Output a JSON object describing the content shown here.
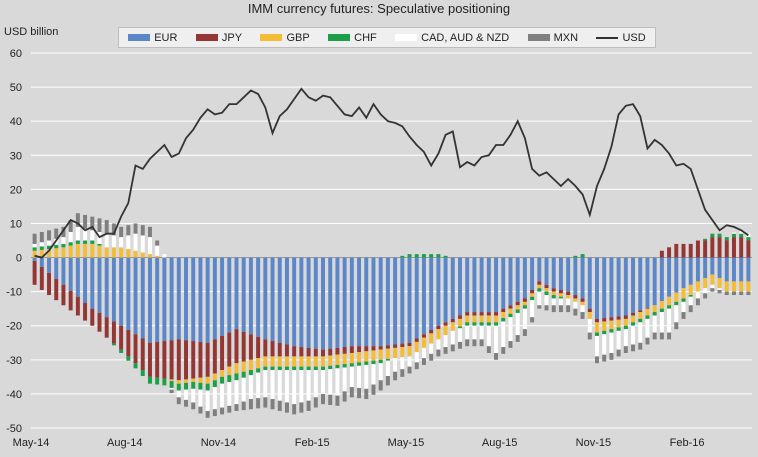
{
  "chart_data": {
    "type": "bar",
    "title": "IMM currency futures: Speculative positioning",
    "ylabel": "USD billion",
    "ylim": [
      -50,
      60
    ],
    "yticks": [
      -50,
      -40,
      -30,
      -20,
      -10,
      0,
      10,
      20,
      30,
      40,
      50,
      60
    ],
    "xtick_labels": [
      "May-14",
      "Aug-14",
      "Nov-14",
      "Feb-15",
      "May-15",
      "Aug-15",
      "Nov-15",
      "Feb-16"
    ],
    "xtick_week_index": [
      0,
      13,
      26,
      39,
      52,
      65,
      78,
      91
    ],
    "weeks": 100,
    "grid": true,
    "series": [
      {
        "name": "EUR",
        "color": "#5b87c9",
        "knots": [
          [
            0,
            -1
          ],
          [
            4,
            -8
          ],
          [
            8,
            -15
          ],
          [
            12,
            -20
          ],
          [
            16,
            -25
          ],
          [
            20,
            -24
          ],
          [
            24,
            -25
          ],
          [
            28,
            -21
          ],
          [
            32,
            -24
          ],
          [
            36,
            -26
          ],
          [
            40,
            -27
          ],
          [
            44,
            -26
          ],
          [
            48,
            -26
          ],
          [
            52,
            -25
          ],
          [
            56,
            -20
          ],
          [
            60,
            -16
          ],
          [
            64,
            -16
          ],
          [
            68,
            -12
          ],
          [
            70,
            -7
          ],
          [
            72,
            -9
          ],
          [
            74,
            -10
          ],
          [
            76,
            -12
          ],
          [
            78,
            -18
          ],
          [
            82,
            -17
          ],
          [
            86,
            -14
          ],
          [
            90,
            -9
          ],
          [
            94,
            -5
          ],
          [
            96,
            -7
          ],
          [
            99,
            -7
          ]
        ]
      },
      {
        "name": "JPY",
        "color": "#943634",
        "knots": [
          [
            0,
            -7
          ],
          [
            4,
            -6
          ],
          [
            8,
            -5
          ],
          [
            12,
            -7
          ],
          [
            16,
            -10
          ],
          [
            20,
            -12
          ],
          [
            24,
            -10
          ],
          [
            28,
            -10
          ],
          [
            32,
            -5
          ],
          [
            36,
            -3
          ],
          [
            40,
            -2
          ],
          [
            44,
            -2
          ],
          [
            48,
            -1
          ],
          [
            52,
            -1
          ],
          [
            56,
            -1
          ],
          [
            60,
            -1
          ],
          [
            64,
            -1
          ],
          [
            68,
            -1
          ],
          [
            72,
            -1
          ],
          [
            76,
            -1
          ],
          [
            78,
            -1
          ],
          [
            82,
            -1
          ],
          [
            86,
            0
          ],
          [
            87,
            2
          ],
          [
            88,
            3
          ],
          [
            89,
            4
          ],
          [
            90,
            4
          ],
          [
            91,
            4
          ],
          [
            92,
            5
          ],
          [
            93,
            5
          ],
          [
            94,
            6
          ],
          [
            95,
            6
          ],
          [
            96,
            5
          ],
          [
            97,
            6
          ],
          [
            98,
            6
          ],
          [
            99,
            5
          ]
        ]
      },
      {
        "name": "GBP",
        "color": "#f5bd36",
        "knots": [
          [
            0,
            2
          ],
          [
            4,
            3
          ],
          [
            6,
            4
          ],
          [
            8,
            4
          ],
          [
            10,
            3
          ],
          [
            12,
            3
          ],
          [
            14,
            2
          ],
          [
            16,
            1
          ],
          [
            18,
            0
          ],
          [
            20,
            -1
          ],
          [
            22,
            -1
          ],
          [
            24,
            -2
          ],
          [
            26,
            -2
          ],
          [
            28,
            -3
          ],
          [
            32,
            -3
          ],
          [
            36,
            -3
          ],
          [
            40,
            -3
          ],
          [
            44,
            -3
          ],
          [
            48,
            -3
          ],
          [
            52,
            -3
          ],
          [
            56,
            -3
          ],
          [
            60,
            -2
          ],
          [
            64,
            -2
          ],
          [
            68,
            -1
          ],
          [
            72,
            -1
          ],
          [
            76,
            -1
          ],
          [
            78,
            -3
          ],
          [
            82,
            -2
          ],
          [
            86,
            -2
          ],
          [
            90,
            -3
          ],
          [
            94,
            -3
          ],
          [
            96,
            -3
          ],
          [
            99,
            -3
          ]
        ]
      },
      {
        "name": "CHF",
        "color": "#1ba047",
        "knots": [
          [
            0,
            1
          ],
          [
            8,
            1
          ],
          [
            12,
            -1
          ],
          [
            16,
            -2
          ],
          [
            20,
            -2
          ],
          [
            24,
            -2
          ],
          [
            28,
            -2
          ],
          [
            32,
            -1
          ],
          [
            36,
            -1
          ],
          [
            40,
            -1
          ],
          [
            44,
            -1
          ],
          [
            48,
            -1
          ],
          [
            52,
            1
          ],
          [
            56,
            1
          ],
          [
            60,
            -1
          ],
          [
            64,
            -1
          ],
          [
            68,
            -1
          ],
          [
            72,
            -1
          ],
          [
            76,
            1
          ],
          [
            78,
            -1
          ],
          [
            82,
            -1
          ],
          [
            86,
            -1
          ],
          [
            90,
            -1
          ],
          [
            94,
            1
          ],
          [
            96,
            1
          ],
          [
            99,
            1
          ]
        ]
      },
      {
        "name": "CAD, AUD & NZD",
        "color": "#ffffff",
        "knots": [
          [
            0,
            1
          ],
          [
            4,
            2
          ],
          [
            6,
            4
          ],
          [
            8,
            3
          ],
          [
            10,
            4
          ],
          [
            12,
            3
          ],
          [
            14,
            5
          ],
          [
            16,
            5
          ],
          [
            18,
            1
          ],
          [
            20,
            -2
          ],
          [
            22,
            -4
          ],
          [
            24,
            -6
          ],
          [
            26,
            -7
          ],
          [
            28,
            -7
          ],
          [
            30,
            -7
          ],
          [
            32,
            -8
          ],
          [
            34,
            -9
          ],
          [
            36,
            -10
          ],
          [
            38,
            -9
          ],
          [
            40,
            -7
          ],
          [
            42,
            -8
          ],
          [
            44,
            -6
          ],
          [
            46,
            -7
          ],
          [
            48,
            -5
          ],
          [
            50,
            -4
          ],
          [
            52,
            -3
          ],
          [
            54,
            -3
          ],
          [
            56,
            -3
          ],
          [
            58,
            -4
          ],
          [
            60,
            -4
          ],
          [
            62,
            -4
          ],
          [
            64,
            -8
          ],
          [
            66,
            -7
          ],
          [
            68,
            -6
          ],
          [
            70,
            -4
          ],
          [
            72,
            -2
          ],
          [
            74,
            -2
          ],
          [
            76,
            -2
          ],
          [
            78,
            -6
          ],
          [
            80,
            -6
          ],
          [
            82,
            -5
          ],
          [
            84,
            -6
          ],
          [
            86,
            -5
          ],
          [
            88,
            -7
          ],
          [
            90,
            -3
          ],
          [
            92,
            -2
          ],
          [
            94,
            -1
          ],
          [
            96,
            0
          ],
          [
            99,
            1
          ]
        ]
      },
      {
        "name": "MXN",
        "color": "#7f7f7f",
        "knots": [
          [
            0,
            3
          ],
          [
            4,
            3
          ],
          [
            6,
            4
          ],
          [
            8,
            4
          ],
          [
            10,
            4
          ],
          [
            12,
            3
          ],
          [
            14,
            3
          ],
          [
            16,
            3
          ],
          [
            18,
            0
          ],
          [
            20,
            -2
          ],
          [
            22,
            -2
          ],
          [
            24,
            -2
          ],
          [
            26,
            -2
          ],
          [
            28,
            -2
          ],
          [
            30,
            -3
          ],
          [
            32,
            -3
          ],
          [
            34,
            -3
          ],
          [
            36,
            -3
          ],
          [
            38,
            -3
          ],
          [
            40,
            -3
          ],
          [
            44,
            -3
          ],
          [
            48,
            -3
          ],
          [
            52,
            -2
          ],
          [
            56,
            -2
          ],
          [
            60,
            -2
          ],
          [
            64,
            -2
          ],
          [
            68,
            -2
          ],
          [
            70,
            -1
          ],
          [
            72,
            -2
          ],
          [
            74,
            -2
          ],
          [
            76,
            -2
          ],
          [
            78,
            -2
          ],
          [
            80,
            -2
          ],
          [
            82,
            -2
          ],
          [
            84,
            -2
          ],
          [
            86,
            -2
          ],
          [
            88,
            -2
          ],
          [
            90,
            -2
          ],
          [
            92,
            -2
          ],
          [
            94,
            -1
          ],
          [
            96,
            -1
          ],
          [
            99,
            -1
          ]
        ]
      },
      {
        "name": "USD",
        "color": "#333333",
        "type": "line",
        "knots": [
          [
            0,
            0.5
          ],
          [
            1,
            0
          ],
          [
            2,
            2
          ],
          [
            3,
            5
          ],
          [
            4,
            8
          ],
          [
            5,
            11
          ],
          [
            6,
            10
          ],
          [
            7,
            8
          ],
          [
            8,
            9
          ],
          [
            9,
            6
          ],
          [
            10,
            7
          ],
          [
            11,
            7
          ],
          [
            12,
            12
          ],
          [
            13,
            16
          ],
          [
            14,
            27
          ],
          [
            15,
            26
          ],
          [
            16,
            29
          ],
          [
            17,
            31
          ],
          [
            18,
            33
          ],
          [
            19,
            29.5
          ],
          [
            20,
            30.5
          ],
          [
            21,
            35
          ],
          [
            22,
            37.5
          ],
          [
            23,
            41
          ],
          [
            24,
            43.5
          ],
          [
            25,
            42
          ],
          [
            26,
            42.5
          ],
          [
            27,
            45
          ],
          [
            28,
            45
          ],
          [
            29,
            47
          ],
          [
            30,
            49
          ],
          [
            31,
            48
          ],
          [
            32,
            44
          ],
          [
            33,
            36.5
          ],
          [
            34,
            41.5
          ],
          [
            35,
            43.5
          ],
          [
            36,
            46.5
          ],
          [
            37,
            49.5
          ],
          [
            38,
            47
          ],
          [
            39,
            46
          ],
          [
            40,
            47.5
          ],
          [
            41,
            47
          ],
          [
            42,
            44.5
          ],
          [
            43,
            42
          ],
          [
            44,
            41.5
          ],
          [
            45,
            44
          ],
          [
            46,
            41
          ],
          [
            47,
            45
          ],
          [
            48,
            42
          ],
          [
            49,
            40
          ],
          [
            50,
            39.5
          ],
          [
            51,
            38.5
          ],
          [
            52,
            35.5
          ],
          [
            53,
            33
          ],
          [
            54,
            31
          ],
          [
            55,
            27
          ],
          [
            56,
            30.5
          ],
          [
            57,
            36
          ],
          [
            58,
            37
          ],
          [
            59,
            26.5
          ],
          [
            60,
            28
          ],
          [
            61,
            27
          ],
          [
            62,
            29.5
          ],
          [
            63,
            30
          ],
          [
            64,
            33
          ],
          [
            65,
            33
          ],
          [
            66,
            36
          ],
          [
            67,
            40
          ],
          [
            68,
            35
          ],
          [
            69,
            26
          ],
          [
            70,
            24
          ],
          [
            71,
            25
          ],
          [
            72,
            23
          ],
          [
            73,
            21
          ],
          [
            74,
            23
          ],
          [
            75,
            21
          ],
          [
            76,
            18.5
          ],
          [
            77,
            12.5
          ],
          [
            78,
            21
          ],
          [
            79,
            26
          ],
          [
            80,
            32.5
          ],
          [
            81,
            42
          ],
          [
            82,
            44.5
          ],
          [
            83,
            45
          ],
          [
            84,
            41.5
          ],
          [
            85,
            32
          ],
          [
            86,
            34.5
          ],
          [
            87,
            33
          ],
          [
            88,
            30.5
          ],
          [
            89,
            27
          ],
          [
            90,
            27.5
          ],
          [
            91,
            26
          ],
          [
            92,
            20
          ],
          [
            93,
            14
          ],
          [
            94,
            11
          ],
          [
            95,
            8
          ],
          [
            96,
            9.5
          ],
          [
            97,
            9
          ],
          [
            98,
            8
          ],
          [
            99,
            6.5
          ]
        ]
      }
    ]
  }
}
